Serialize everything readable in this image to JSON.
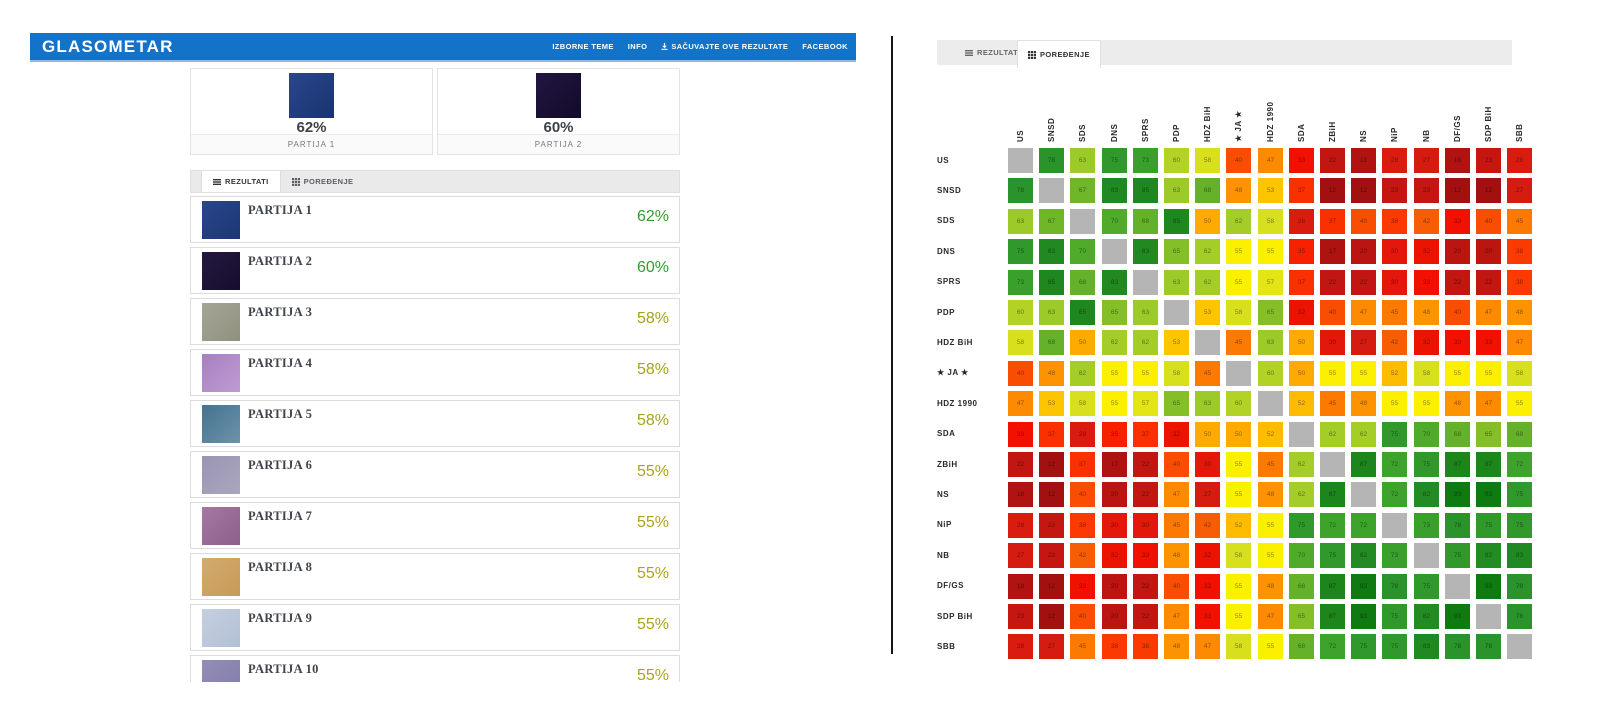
{
  "header": {
    "logo": "GLASOMETAR",
    "nav": [
      {
        "label": "IZBORNE TEME",
        "icon": null
      },
      {
        "label": "INFO",
        "icon": null
      },
      {
        "label": "SAČUVAJTE OVE REZULTATE",
        "icon": "download-icon"
      },
      {
        "label": "FACEBOOK",
        "icon": null
      }
    ]
  },
  "tabs": {
    "rezultati": "REZULTATI",
    "poredenje": "POREĐENJE"
  },
  "summary_cards": [
    {
      "name": "PARTIJA 1",
      "percent": "62%",
      "swatch": [
        "#2a478c",
        "#1a336f"
      ]
    },
    {
      "name": "PARTIJA 2",
      "percent": "60%",
      "swatch": [
        "#231542",
        "#120b28"
      ]
    }
  ],
  "results_list": [
    {
      "name": "PARTIJA 1",
      "percent": "62%",
      "percent_color": "#2f9e2f",
      "swatch": [
        "#2a478a",
        "#1c3674"
      ]
    },
    {
      "name": "PARTIJA 2",
      "percent": "60%",
      "percent_color": "#2f9e2f",
      "swatch": [
        "#251840",
        "#150d2d"
      ]
    },
    {
      "name": "PARTIJA 3",
      "percent": "58%",
      "percent_color": "#a3a417",
      "swatch": [
        "#a5a596",
        "#91917f"
      ]
    },
    {
      "name": "PARTIJA 4",
      "percent": "58%",
      "percent_color": "#a3a417",
      "swatch": [
        "#a77fc2",
        "#bd9cd2"
      ]
    },
    {
      "name": "PARTIJA 5",
      "percent": "58%",
      "percent_color": "#a3a417",
      "swatch": [
        "#45738d",
        "#6b93ab"
      ]
    },
    {
      "name": "PARTIJA 6",
      "percent": "55%",
      "percent_color": "#ada31a",
      "swatch": [
        "#9a95b0",
        "#aba6c0"
      ]
    },
    {
      "name": "PARTIJA 7",
      "percent": "55%",
      "percent_color": "#ada31a",
      "swatch": [
        "#a478a2",
        "#8d5f8b"
      ]
    },
    {
      "name": "PARTIJA 8",
      "percent": "55%",
      "percent_color": "#ada31a",
      "swatch": [
        "#d4aa70",
        "#c79a56"
      ]
    },
    {
      "name": "PARTIJA 9",
      "percent": "55%",
      "percent_color": "#ada31a",
      "swatch": [
        "#c5cfe0",
        "#b2c0d4"
      ]
    },
    {
      "name": "PARTIJA 10",
      "percent": "55%",
      "percent_color": "#ada31a",
      "swatch": [
        "#928eb6",
        "#817daa"
      ]
    }
  ],
  "chart_data": {
    "type": "heatmap",
    "title": "POREĐENJE",
    "categories": [
      "US",
      "SNSD",
      "SDS",
      "DNS",
      "SPRS",
      "PDP",
      "HDZ BiH",
      "★ JA ★",
      "HDZ 1990",
      "SDA",
      "ZBiH",
      "NS",
      "NiP",
      "NB",
      "DF/GS",
      "SDP BiH",
      "SBB"
    ],
    "matrix": [
      [
        null,
        78,
        63,
        75,
        73,
        60,
        58,
        40,
        47,
        33,
        22,
        18,
        28,
        27,
        18,
        23,
        28
      ],
      [
        78,
        null,
        67,
        83,
        85,
        63,
        68,
        48,
        53,
        37,
        12,
        12,
        23,
        23,
        12,
        12,
        27
      ],
      [
        63,
        67,
        null,
        70,
        68,
        85,
        50,
        62,
        58,
        28,
        37,
        40,
        38,
        42,
        33,
        40,
        45
      ],
      [
        75,
        83,
        70,
        null,
        83,
        65,
        62,
        55,
        55,
        35,
        17,
        20,
        30,
        32,
        20,
        20,
        38
      ],
      [
        73,
        85,
        68,
        83,
        null,
        63,
        62,
        55,
        57,
        37,
        22,
        22,
        30,
        33,
        22,
        22,
        38
      ],
      [
        60,
        63,
        85,
        65,
        63,
        null,
        53,
        58,
        65,
        32,
        40,
        47,
        45,
        48,
        40,
        47,
        48
      ],
      [
        58,
        68,
        50,
        62,
        62,
        53,
        null,
        45,
        63,
        50,
        30,
        27,
        42,
        32,
        33,
        33,
        47
      ],
      [
        40,
        48,
        62,
        55,
        55,
        58,
        45,
        null,
        60,
        50,
        55,
        55,
        52,
        58,
        55,
        55,
        58
      ],
      [
        47,
        53,
        58,
        55,
        57,
        65,
        63,
        60,
        null,
        52,
        45,
        48,
        55,
        55,
        48,
        47,
        55
      ],
      [
        33,
        37,
        28,
        35,
        37,
        32,
        50,
        50,
        52,
        null,
        62,
        62,
        75,
        70,
        68,
        65,
        68
      ],
      [
        22,
        12,
        37,
        17,
        22,
        40,
        30,
        55,
        45,
        62,
        null,
        87,
        72,
        75,
        87,
        87,
        72
      ],
      [
        18,
        12,
        40,
        20,
        22,
        47,
        27,
        55,
        48,
        62,
        87,
        null,
        72,
        82,
        93,
        93,
        75
      ],
      [
        28,
        23,
        38,
        30,
        30,
        45,
        42,
        52,
        55,
        75,
        72,
        72,
        null,
        73,
        78,
        75,
        75
      ],
      [
        27,
        23,
        42,
        32,
        33,
        48,
        32,
        58,
        55,
        70,
        75,
        82,
        73,
        null,
        75,
        82,
        83
      ],
      [
        18,
        12,
        33,
        20,
        22,
        40,
        33,
        55,
        48,
        68,
        87,
        93,
        78,
        75,
        null,
        93,
        78
      ],
      [
        23,
        12,
        40,
        20,
        22,
        47,
        33,
        55,
        47,
        65,
        87,
        93,
        75,
        82,
        93,
        null,
        78
      ],
      [
        28,
        27,
        45,
        38,
        38,
        48,
        47,
        58,
        55,
        68,
        72,
        75,
        75,
        83,
        78,
        78,
        null
      ]
    ],
    "value_range": [
      0,
      100
    ],
    "diagonal_color": "#b5b5b5",
    "color_scale": [
      [
        12,
        "#a31010"
      ],
      [
        18,
        "#b01311"
      ],
      [
        20,
        "#ba1510"
      ],
      [
        23,
        "#c51611"
      ],
      [
        28,
        "#da1c10"
      ],
      [
        33,
        "#f21100"
      ],
      [
        37,
        "#fb3000"
      ],
      [
        40,
        "#f94e02"
      ],
      [
        42,
        "#f75d04"
      ],
      [
        45,
        "#fc7902"
      ],
      [
        48,
        "#fd9301"
      ],
      [
        50,
        "#fdab00"
      ],
      [
        53,
        "#fdc500"
      ],
      [
        55,
        "#fcf000"
      ],
      [
        58,
        "#d8e01e"
      ],
      [
        60,
        "#b3d226"
      ],
      [
        63,
        "#9cca28"
      ],
      [
        65,
        "#84bf28"
      ],
      [
        68,
        "#65b22a"
      ],
      [
        72,
        "#3da32c"
      ],
      [
        75,
        "#31992c"
      ],
      [
        78,
        "#2b932b"
      ],
      [
        83,
        "#218921"
      ],
      [
        87,
        "#1c851c"
      ],
      [
        93,
        "#0f7a12"
      ]
    ]
  }
}
